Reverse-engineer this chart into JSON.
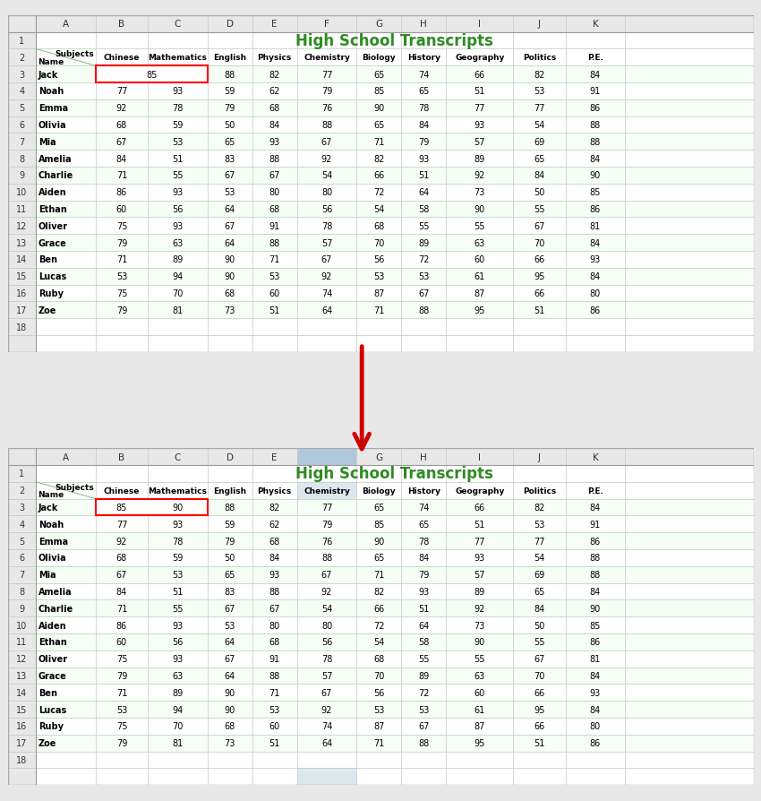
{
  "title": "High School Transcripts",
  "title_color": "#2E8B22",
  "col_headers": [
    "A",
    "B",
    "C",
    "D",
    "E",
    "F",
    "G",
    "H",
    "I",
    "J",
    "K"
  ],
  "row_numbers": [
    "1",
    "2",
    "3",
    "4",
    "5",
    "6",
    "7",
    "8",
    "9",
    "10",
    "11",
    "12",
    "13",
    "14",
    "15",
    "16",
    "17",
    "18"
  ],
  "subjects": [
    "Chinese",
    "Mathematics",
    "English",
    "Physics",
    "Chemistry",
    "Biology",
    "History",
    "Geography",
    "Politics",
    "P.E."
  ],
  "names": [
    "Jack",
    "Noah",
    "Emma",
    "Olivia",
    "Mia",
    "Amelia",
    "Charlie",
    "Aiden",
    "Ethan",
    "Oliver",
    "Grace",
    "Ben",
    "Lucas",
    "Ruby",
    "Zoe"
  ],
  "data_before": [
    [
      null,
      85,
      88,
      82,
      77,
      65,
      74,
      66,
      82,
      84
    ],
    [
      77,
      93,
      59,
      62,
      79,
      85,
      65,
      51,
      53,
      91
    ],
    [
      92,
      78,
      79,
      68,
      76,
      90,
      78,
      77,
      77,
      86
    ],
    [
      68,
      59,
      50,
      84,
      88,
      65,
      84,
      93,
      54,
      88
    ],
    [
      67,
      53,
      65,
      93,
      67,
      71,
      79,
      57,
      69,
      88
    ],
    [
      84,
      51,
      83,
      88,
      92,
      82,
      93,
      89,
      65,
      84
    ],
    [
      71,
      55,
      67,
      67,
      54,
      66,
      51,
      92,
      84,
      90
    ],
    [
      86,
      93,
      53,
      80,
      80,
      72,
      64,
      73,
      50,
      85
    ],
    [
      60,
      56,
      64,
      68,
      56,
      54,
      58,
      90,
      55,
      86
    ],
    [
      75,
      93,
      67,
      91,
      78,
      68,
      55,
      55,
      67,
      81
    ],
    [
      79,
      63,
      64,
      88,
      57,
      70,
      89,
      63,
      70,
      84
    ],
    [
      71,
      89,
      90,
      71,
      67,
      56,
      72,
      60,
      66,
      93
    ],
    [
      53,
      94,
      90,
      53,
      92,
      53,
      53,
      61,
      95,
      84
    ],
    [
      75,
      70,
      68,
      60,
      74,
      87,
      67,
      87,
      66,
      80
    ],
    [
      79,
      81,
      73,
      51,
      64,
      71,
      88,
      95,
      51,
      86
    ]
  ],
  "data_after": [
    [
      85,
      90,
      88,
      82,
      77,
      65,
      74,
      66,
      82,
      84
    ],
    [
      77,
      93,
      59,
      62,
      79,
      85,
      65,
      51,
      53,
      91
    ],
    [
      92,
      78,
      79,
      68,
      76,
      90,
      78,
      77,
      77,
      86
    ],
    [
      68,
      59,
      50,
      84,
      88,
      65,
      84,
      93,
      54,
      88
    ],
    [
      67,
      53,
      65,
      93,
      67,
      71,
      79,
      57,
      69,
      88
    ],
    [
      84,
      51,
      83,
      88,
      92,
      82,
      93,
      89,
      65,
      84
    ],
    [
      71,
      55,
      67,
      67,
      54,
      66,
      51,
      92,
      84,
      90
    ],
    [
      86,
      93,
      53,
      80,
      80,
      72,
      64,
      73,
      50,
      85
    ],
    [
      60,
      56,
      64,
      68,
      56,
      54,
      58,
      90,
      55,
      86
    ],
    [
      75,
      93,
      67,
      91,
      78,
      68,
      55,
      55,
      67,
      81
    ],
    [
      79,
      63,
      64,
      88,
      57,
      70,
      89,
      63,
      70,
      84
    ],
    [
      71,
      89,
      90,
      71,
      67,
      56,
      72,
      60,
      66,
      93
    ],
    [
      53,
      94,
      90,
      53,
      92,
      53,
      53,
      61,
      95,
      84
    ],
    [
      75,
      70,
      68,
      60,
      74,
      87,
      67,
      87,
      66,
      80
    ],
    [
      79,
      81,
      73,
      51,
      64,
      71,
      88,
      95,
      51,
      86
    ]
  ],
  "bg_color": "#FFFFFF",
  "header_bg": "#F2F2F2",
  "row_line_color": "#90EE90",
  "col_line_color": "#D3D3D3",
  "stripe_color": "#F0FFF0",
  "header_bold": true,
  "name_bold": true,
  "merged_cell_color_before": "#FFFFFF",
  "red_border_color": "#FF0000",
  "arrow_color": "#CC0000",
  "highlight_col_f": "#D8E8F0"
}
